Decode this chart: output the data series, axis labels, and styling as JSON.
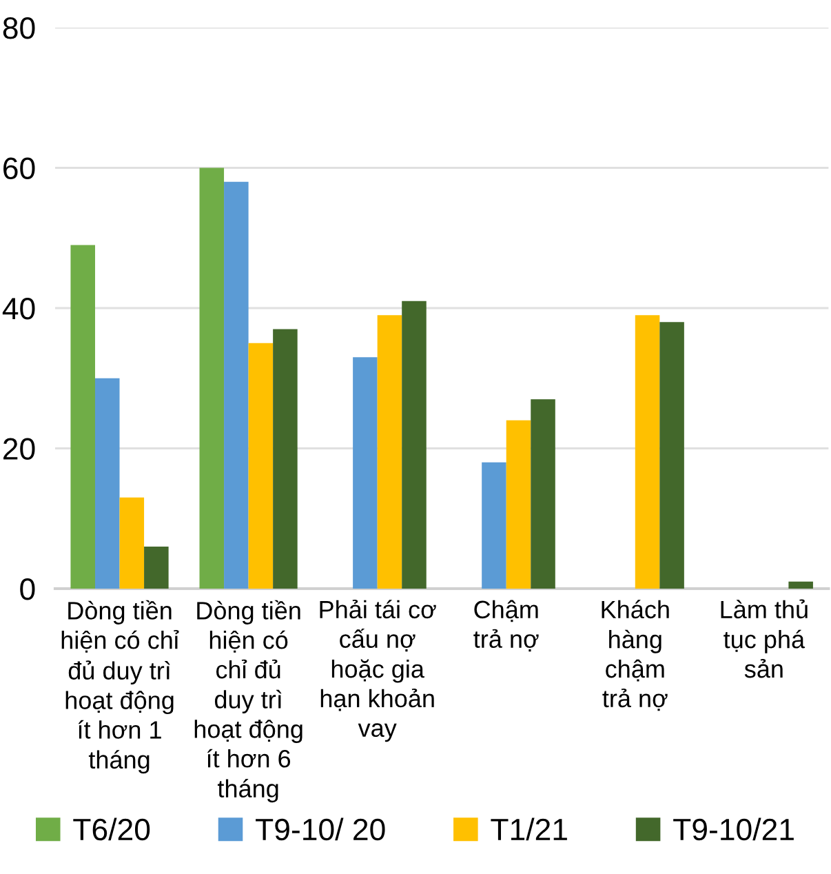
{
  "chart_data": {
    "type": "bar",
    "categories": [
      "Dòng tiền\nhiện có chỉ\nđủ duy trì\nhoạt động\nít hơn 1\ntháng",
      "Dòng tiền\nhiện có\nchỉ đủ\nduy trì\nhoạt động\nít hơn 6\ntháng",
      "Phải tái cơ\ncấu nợ\nhoặc gia\nhạn khoản\nvay",
      "Chậm\ntrả nợ",
      "Khách\nhàng\nchậm\ntrả nợ",
      "Làm thủ\ntục phá\nsản"
    ],
    "series": [
      {
        "name": "T6/20",
        "color": "#70ad47",
        "values": [
          49,
          60,
          null,
          null,
          null,
          null
        ]
      },
      {
        "name": "T9-10/ 20",
        "color": "#5b9bd5",
        "values": [
          30,
          58,
          33,
          18,
          null,
          null
        ]
      },
      {
        "name": "T1/21",
        "color": "#ffc000",
        "values": [
          13,
          35,
          39,
          24,
          39,
          null
        ]
      },
      {
        "name": "T9-10/21",
        "color": "#43682b",
        "values": [
          6,
          37,
          41,
          27,
          38,
          1
        ]
      }
    ],
    "ylim": [
      0,
      80
    ],
    "yticks": [
      0,
      20,
      40,
      60,
      80
    ],
    "grid": "y",
    "legend": "bottom"
  }
}
